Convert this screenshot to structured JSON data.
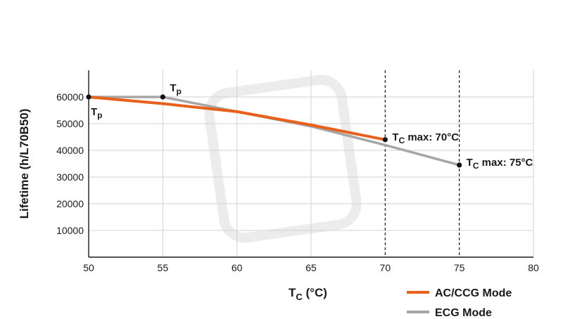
{
  "chart_data": {
    "type": "line",
    "xlabel_main": "T",
    "xlabel_sub": "C",
    "xlabel_rest": " (°C)",
    "ylabel": "Lifetime (h/L70B50)",
    "xlim": [
      50,
      80
    ],
    "ylim": [
      0,
      70000
    ],
    "xticks": [
      50,
      55,
      60,
      65,
      70,
      75,
      80
    ],
    "yticks": [
      10000,
      20000,
      30000,
      40000,
      50000,
      60000
    ],
    "grid": true,
    "legend_position": "bottom-right",
    "series": [
      {
        "name": "AC/CCG Mode",
        "color": "#e8601c",
        "x": [
          50,
          55,
          60,
          65,
          70
        ],
        "y": [
          60000,
          57500,
          54500,
          49500,
          44000
        ]
      },
      {
        "name": "ECG Mode",
        "color": "#a6a6a6",
        "x": [
          50,
          55,
          60,
          65,
          70,
          75
        ],
        "y": [
          60000,
          60000,
          54500,
          49000,
          42000,
          34500
        ]
      }
    ],
    "markers": [
      {
        "x": 50,
        "y": 60000
      },
      {
        "x": 55,
        "y": 60000
      },
      {
        "x": 70,
        "y": 44000
      },
      {
        "x": 75,
        "y": 34500
      }
    ],
    "vlines": [
      70,
      75
    ],
    "annotations": [
      {
        "main": "T",
        "sub": "p",
        "rest": "",
        "x": 50,
        "y": 60000,
        "pos": "below"
      },
      {
        "main": "T",
        "sub": "p",
        "rest": "",
        "x": 55,
        "y": 60000,
        "pos": "above"
      },
      {
        "main": "T",
        "sub": "C",
        "rest": " max: 70°C",
        "x": 70,
        "y": 44000,
        "pos": "right"
      },
      {
        "main": "T",
        "sub": "C",
        "rest": " max: 75°C",
        "x": 75,
        "y": 34500,
        "pos": "right"
      }
    ]
  }
}
